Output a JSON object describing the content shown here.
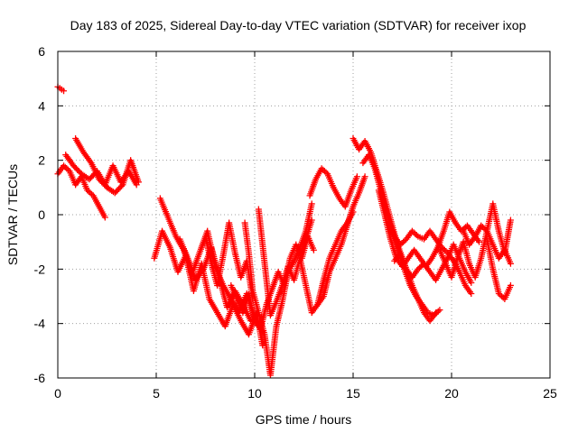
{
  "chart_data": {
    "type": "scatter",
    "title": "Day 183 of 2025, Sidereal Day-to-day VTEC variation (SDTVAR) for receiver ixop",
    "xlabel": "GPS time / hours",
    "ylabel": "SDTVAR / TECUs",
    "xlim": [
      0,
      25
    ],
    "ylim": [
      -6,
      6
    ],
    "xticks": [
      "0",
      "5",
      "10",
      "15",
      "20",
      "25"
    ],
    "yticks": [
      "-6",
      "-4",
      "-2",
      "0",
      "2",
      "4",
      "6"
    ],
    "grid": true,
    "marker": "plus",
    "series_color": "#ff0000",
    "series": [
      {
        "name": "s1",
        "x": [
          0.0,
          0.1,
          0.2,
          0.3
        ],
        "y": [
          4.7,
          4.65,
          4.6,
          4.55
        ]
      },
      {
        "name": "s2",
        "x": [
          0.0,
          0.3,
          0.6,
          0.9,
          1.2,
          1.5,
          1.8,
          2.1,
          2.4
        ],
        "y": [
          1.5,
          1.8,
          1.6,
          1.1,
          1.4,
          0.9,
          0.7,
          0.3,
          -0.1
        ]
      },
      {
        "name": "s3",
        "x": [
          0.4,
          0.8,
          1.2,
          1.6,
          2.0,
          2.4,
          2.8,
          3.2,
          3.6,
          4.0
        ],
        "y": [
          2.2,
          1.8,
          1.5,
          1.3,
          1.6,
          1.1,
          1.8,
          1.2,
          1.6,
          1.1
        ]
      },
      {
        "name": "s4",
        "x": [
          0.9,
          1.3,
          1.7,
          2.1,
          2.5,
          2.9,
          3.3,
          3.7,
          4.1
        ],
        "y": [
          2.8,
          2.3,
          1.9,
          1.3,
          1.0,
          0.8,
          1.1,
          2.0,
          1.2
        ]
      },
      {
        "name": "s5",
        "x": [
          4.9,
          5.3,
          5.7,
          6.1,
          6.5,
          6.9,
          7.3,
          7.7,
          8.1,
          8.5,
          8.9,
          9.3,
          9.7,
          10.1,
          10.4
        ],
        "y": [
          -1.6,
          -0.6,
          -1.2,
          -2.1,
          -1.5,
          -2.8,
          -1.8,
          -3.1,
          -3.6,
          -4.1,
          -3.3,
          -3.9,
          -4.4,
          -3.6,
          -4.8
        ]
      },
      {
        "name": "s6",
        "x": [
          5.2,
          5.6,
          6.0,
          6.4,
          6.8,
          7.2,
          7.6,
          8.0,
          8.4,
          8.8,
          9.2,
          9.6,
          10.0,
          10.4
        ],
        "y": [
          0.6,
          -0.1,
          -0.8,
          -1.3,
          -2.2,
          -1.4,
          -0.6,
          -1.9,
          -2.6,
          -3.1,
          -3.6,
          -2.9,
          -3.8,
          -4.3
        ]
      },
      {
        "name": "s7",
        "x": [
          6.2,
          6.6,
          7.0,
          7.4,
          7.8,
          8.2,
          8.6,
          9.0,
          9.4,
          9.8
        ],
        "y": [
          -0.9,
          -1.6,
          -2.4,
          -2.0,
          -1.2,
          -2.3,
          -3.4,
          -2.8,
          -3.3,
          -3.9
        ]
      },
      {
        "name": "s8",
        "x": [
          7.5,
          7.8,
          8.1,
          8.4,
          8.7,
          9.0,
          9.3,
          9.6,
          9.9
        ],
        "y": [
          -0.8,
          -1.8,
          -2.6,
          -1.5,
          -0.3,
          -1.4,
          -2.3,
          -1.7,
          -3.1
        ]
      },
      {
        "name": "s9",
        "x": [
          9.5,
          9.7,
          9.9,
          10.2,
          10.5,
          10.8,
          11.1,
          11.4,
          11.7,
          12.0,
          12.3,
          12.6,
          12.9
        ],
        "y": [
          -0.3,
          -1.4,
          -2.8,
          -3.6,
          -4.4,
          -5.9,
          -4.1,
          -3.2,
          -2.1,
          -1.7,
          -1.2,
          -0.6,
          0.4
        ]
      },
      {
        "name": "s10",
        "x": [
          8.8,
          9.1,
          9.4,
          9.7,
          10.0,
          10.3,
          10.6,
          10.9,
          11.2,
          11.5,
          11.8,
          12.1,
          12.4,
          12.7,
          13.0
        ],
        "y": [
          -2.6,
          -3.1,
          -3.6,
          -2.9,
          -3.9,
          -4.2,
          -3.3,
          -2.7,
          -2.1,
          -2.6,
          -1.6,
          -1.1,
          -1.6,
          -0.8,
          -1.3
        ]
      },
      {
        "name": "s11",
        "x": [
          10.2,
          10.4,
          10.6,
          10.8,
          11.1,
          11.4,
          11.7,
          12.0,
          12.3,
          12.6,
          12.9
        ],
        "y": [
          0.2,
          -1.1,
          -2.4,
          -3.7,
          -3.2,
          -2.6,
          -1.9,
          -2.4,
          -1.6,
          -0.9,
          -0.2
        ]
      },
      {
        "name": "s12",
        "x": [
          12.3,
          12.6,
          12.9,
          13.2,
          13.5,
          13.8,
          14.1,
          14.4,
          14.7,
          15.0
        ],
        "y": [
          -1.6,
          -2.6,
          -3.6,
          -3.3,
          -2.4,
          -1.6,
          -1.1,
          -0.6,
          -0.3,
          0.1
        ]
      },
      {
        "name": "s13",
        "x": [
          12.8,
          13.1,
          13.4,
          13.7,
          14.0,
          14.3,
          14.6,
          14.9,
          15.2
        ],
        "y": [
          0.7,
          1.3,
          1.7,
          1.5,
          1.0,
          0.6,
          0.3,
          0.9,
          1.4
        ]
      },
      {
        "name": "s14",
        "x": [
          13.2,
          13.5,
          13.8,
          14.1,
          14.4,
          14.7,
          15.0,
          15.3,
          15.6
        ],
        "y": [
          -3.3,
          -3.0,
          -2.1,
          -1.6,
          -1.1,
          -0.4,
          0.3,
          0.8,
          1.4
        ]
      },
      {
        "name": "s15",
        "x": [
          15.0,
          15.3,
          15.6,
          15.9,
          16.2,
          16.5,
          16.8,
          17.1,
          17.4,
          17.7,
          18.0,
          18.3,
          18.6,
          18.9,
          19.2
        ],
        "y": [
          2.8,
          2.4,
          2.7,
          2.3,
          1.6,
          0.9,
          0.1,
          -0.7,
          -1.4,
          -2.0,
          -2.6,
          -3.1,
          -3.6,
          -3.9,
          -3.6
        ]
      },
      {
        "name": "s16",
        "x": [
          15.5,
          15.8,
          16.1,
          16.4,
          16.7,
          17.0,
          17.3,
          17.6,
          17.9,
          18.2,
          18.5,
          18.8,
          19.1,
          19.4
        ],
        "y": [
          1.9,
          2.2,
          1.7,
          0.9,
          0.1,
          -0.6,
          -1.3,
          -2.0,
          -2.6,
          -3.0,
          -3.3,
          -3.6,
          -3.7,
          -3.5
        ]
      },
      {
        "name": "s17",
        "x": [
          16.3,
          16.6,
          16.9,
          17.2,
          17.5,
          17.8,
          18.1,
          18.4,
          18.7,
          19.0,
          19.3,
          19.6,
          19.9,
          20.2,
          20.5,
          20.8,
          21.1,
          21.4
        ],
        "y": [
          0.9,
          0.0,
          -0.9,
          -1.6,
          -1.9,
          -1.6,
          -1.3,
          -1.6,
          -1.9,
          -1.6,
          -1.2,
          -0.6,
          0.1,
          -0.3,
          -0.6,
          -0.4,
          -0.7,
          -1.0
        ]
      },
      {
        "name": "s18",
        "x": [
          16.8,
          17.1,
          17.4,
          17.7,
          18.0,
          18.3,
          18.6,
          18.9,
          19.2,
          19.5,
          19.8,
          20.1,
          20.4,
          20.7,
          21.0
        ],
        "y": [
          -0.3,
          -0.8,
          -1.1,
          -0.9,
          -0.6,
          -0.8,
          -0.9,
          -0.6,
          -0.9,
          -1.2,
          -1.4,
          -1.7,
          -2.1,
          -2.6,
          -2.9
        ]
      },
      {
        "name": "s19",
        "x": [
          17.1,
          17.4,
          17.7,
          18.0,
          18.3,
          18.6,
          18.9,
          19.2,
          19.5,
          19.8,
          20.1,
          20.4,
          20.7,
          21.0
        ],
        "y": [
          -1.7,
          -1.4,
          -2.0,
          -2.3,
          -2.0,
          -1.8,
          -2.1,
          -2.4,
          -2.0,
          -1.6,
          -1.1,
          -1.6,
          -2.1,
          -2.5
        ]
      },
      {
        "name": "s20",
        "x": [
          19.4,
          19.7,
          20.0,
          20.3,
          20.6,
          20.9,
          21.2,
          21.5,
          21.8,
          22.1,
          22.4,
          22.7,
          23.0
        ],
        "y": [
          -1.3,
          -1.8,
          -2.3,
          -1.6,
          -1.0,
          -1.8,
          -2.3,
          -1.6,
          -0.6,
          0.4,
          -0.6,
          -1.4,
          -0.2
        ]
      },
      {
        "name": "s21",
        "x": [
          20.6,
          20.9,
          21.2,
          21.5,
          21.8,
          22.1,
          22.4,
          22.7,
          23.0
        ],
        "y": [
          -0.6,
          -1.1,
          -0.8,
          -0.4,
          -0.6,
          -1.1,
          -1.6,
          -1.3,
          -1.8
        ]
      },
      {
        "name": "s22",
        "x": [
          21.8,
          22.1,
          22.4,
          22.7,
          23.0
        ],
        "y": [
          -0.9,
          -2.0,
          -2.9,
          -3.1,
          -2.6
        ]
      }
    ]
  }
}
